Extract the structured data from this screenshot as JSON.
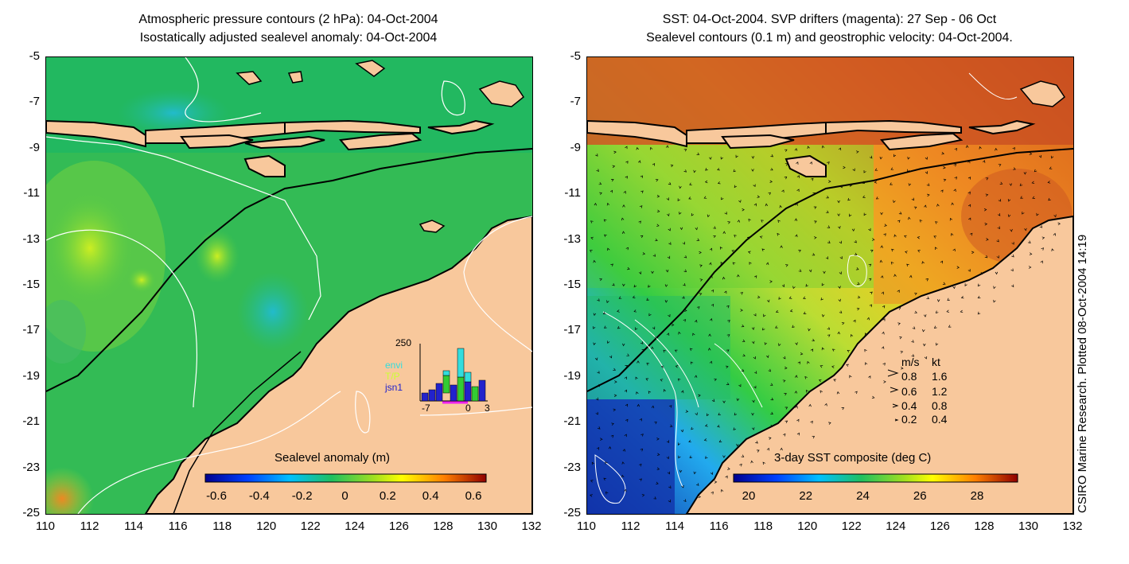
{
  "left": {
    "title_line1": "Atmospheric pressure contours (2 hPa): 04-Oct-2004",
    "title_line2": "Isostatically adjusted sealevel anomaly: 04-Oct-2004",
    "colorbar_label": "Sealevel anomaly (m)",
    "colorbar_ticks": [
      "-0.6",
      "-0.4",
      "-0.2",
      "0",
      "0.2",
      "0.4",
      "0.6"
    ],
    "inset": {
      "ymax_label": "250",
      "x_ticks": [
        "-7",
        "0",
        "3"
      ],
      "legend": [
        {
          "name": "envi",
          "color": "#33dddd"
        },
        {
          "name": "T/P",
          "color": "#33cc33"
        },
        {
          "name": "jsn1",
          "color": "#2222cc"
        }
      ]
    }
  },
  "right": {
    "title_line1": "SST: 04-Oct-2004. SVP drifters (magenta): 27 Sep - 06 Oct",
    "title_line2": "Sealevel contours (0.1 m) and geostrophic velocity: 04-Oct-2004.",
    "colorbar_label": "3-day SST composite (deg C)",
    "colorbar_ticks": [
      "20",
      "22",
      "24",
      "26",
      "28"
    ],
    "velocity_legend": {
      "header_ms": "m/s",
      "header_kt": "kt",
      "rows": [
        {
          "ms": "0.8",
          "kt": "1.6"
        },
        {
          "ms": "0.6",
          "kt": "1.2"
        },
        {
          "ms": "0.4",
          "kt": "0.8"
        },
        {
          "ms": "0.2",
          "kt": "0.4"
        }
      ]
    }
  },
  "y_ticks": [
    "-5",
    "-7",
    "-9",
    "-11",
    "-13",
    "-15",
    "-17",
    "-19",
    "-21",
    "-23",
    "-25"
  ],
  "x_ticks": [
    "110",
    "112",
    "114",
    "116",
    "118",
    "120",
    "122",
    "124",
    "126",
    "128",
    "130",
    "132"
  ],
  "credit": "CSIRO Marine Research. Plotted 08-Oct-2004 14:19",
  "colors": {
    "land": "#f8c89c",
    "ocean_mid": "#22bb55"
  }
}
